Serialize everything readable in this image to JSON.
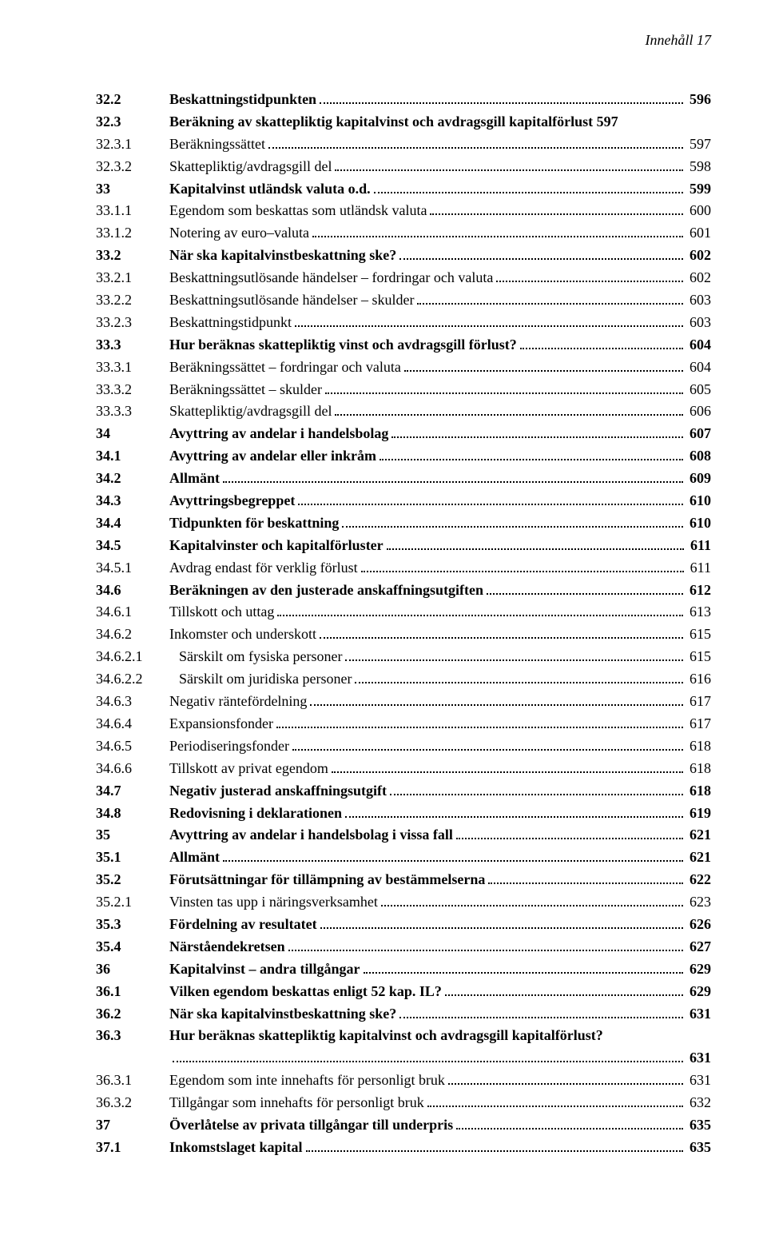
{
  "header": "Innehåll 17",
  "entries": [
    {
      "num": "32.2",
      "title": "Beskattningstidpunkten",
      "page": "596",
      "bold": true,
      "level": 1
    },
    {
      "num": "32.3",
      "title": "Beräkning av skattepliktig kapitalvinst och avdragsgill kapitalförlust 597",
      "page": "",
      "bold": true,
      "level": 1,
      "nopage": true
    },
    {
      "num": "32.3.1",
      "title": "Beräkningssättet",
      "page": "597",
      "bold": false,
      "level": 2
    },
    {
      "num": "32.3.2",
      "title": "Skattepliktig/avdragsgill del",
      "page": "598",
      "bold": false,
      "level": 2
    },
    {
      "num": "33",
      "title": "Kapitalvinst utländsk valuta o.d.",
      "page": "599",
      "bold": true,
      "level": 0
    },
    {
      "num": "33.1.1",
      "title": "Egendom som beskattas som utländsk valuta",
      "page": "600",
      "bold": false,
      "level": 2
    },
    {
      "num": "33.1.2",
      "title": "Notering av euro–valuta",
      "page": "601",
      "bold": false,
      "level": 2
    },
    {
      "num": "33.2",
      "title": "När ska kapitalvinstbeskattning ske?",
      "page": "602",
      "bold": true,
      "level": 1
    },
    {
      "num": "33.2.1",
      "title": "Beskattningsutlösande händelser – fordringar och  valuta",
      "page": "602",
      "bold": false,
      "level": 2
    },
    {
      "num": "33.2.2",
      "title": "Beskattningsutlösande händelser – skulder",
      "page": "603",
      "bold": false,
      "level": 2
    },
    {
      "num": "33.2.3",
      "title": "Beskattningstidpunkt",
      "page": "603",
      "bold": false,
      "level": 2
    },
    {
      "num": "33.3",
      "title": "Hur beräknas skattepliktig vinst och avdragsgill förlust?",
      "page": "604",
      "bold": true,
      "level": 1
    },
    {
      "num": "33.3.1",
      "title": "Beräkningssättet – fordringar och valuta",
      "page": "604",
      "bold": false,
      "level": 2
    },
    {
      "num": "33.3.2",
      "title": "Beräkningssättet – skulder",
      "page": "605",
      "bold": false,
      "level": 2
    },
    {
      "num": "33.3.3",
      "title": "Skattepliktig/avdragsgill del",
      "page": "606",
      "bold": false,
      "level": 2
    },
    {
      "num": "34",
      "title": "Avyttring av andelar  i handelsbolag",
      "page": "607",
      "bold": true,
      "level": 0
    },
    {
      "num": "34.1",
      "title": "Avyttring av andelar eller inkråm",
      "page": "608",
      "bold": true,
      "level": 1
    },
    {
      "num": "34.2",
      "title": "Allmänt",
      "page": "609",
      "bold": true,
      "level": 1
    },
    {
      "num": "34.3",
      "title": "Avyttringsbegreppet",
      "page": "610",
      "bold": true,
      "level": 1
    },
    {
      "num": "34.4",
      "title": "Tidpunkten för beskattning",
      "page": "610",
      "bold": true,
      "level": 1
    },
    {
      "num": "34.5",
      "title": "Kapitalvinster och kapitalförluster",
      "page": "611",
      "bold": true,
      "level": 1
    },
    {
      "num": "34.5.1",
      "title": "Avdrag endast för verklig förlust",
      "page": "611",
      "bold": false,
      "level": 2
    },
    {
      "num": "34.6",
      "title": "Beräkningen av den justerade anskaffningsutgiften",
      "page": "612",
      "bold": true,
      "level": 1
    },
    {
      "num": "34.6.1",
      "title": "Tillskott och uttag",
      "page": "613",
      "bold": false,
      "level": 2
    },
    {
      "num": "34.6.2",
      "title": "Inkomster och underskott",
      "page": "615",
      "bold": false,
      "level": 2
    },
    {
      "num": "34.6.2.1",
      "title": "Särskilt om fysiska personer",
      "page": "615",
      "bold": false,
      "level": 3
    },
    {
      "num": "34.6.2.2",
      "title": "Särskilt om juridiska personer",
      "page": "616",
      "bold": false,
      "level": 3
    },
    {
      "num": "34.6.3",
      "title": "Negativ räntefördelning",
      "page": "617",
      "bold": false,
      "level": 2
    },
    {
      "num": "34.6.4",
      "title": "Expansionsfonder",
      "page": "617",
      "bold": false,
      "level": 2
    },
    {
      "num": "34.6.5",
      "title": "Periodiseringsfonder",
      "page": "618",
      "bold": false,
      "level": 2
    },
    {
      "num": "34.6.6",
      "title": "Tillskott av privat egendom",
      "page": "618",
      "bold": false,
      "level": 2
    },
    {
      "num": "34.7",
      "title": "Negativ justerad anskaffningsutgift",
      "page": "618",
      "bold": true,
      "level": 1
    },
    {
      "num": "34.8",
      "title": "Redovisning i deklarationen",
      "page": "619",
      "bold": true,
      "level": 1
    },
    {
      "num": "35",
      "title": "Avyttring av andelar i handelsbolag i vissa fall",
      "page": "621",
      "bold": true,
      "level": 0
    },
    {
      "num": "35.1",
      "title": "Allmänt",
      "page": "621",
      "bold": true,
      "level": 1
    },
    {
      "num": "35.2",
      "title": "Förutsättningar för tillämpning av bestämmelserna",
      "page": "622",
      "bold": true,
      "level": 1
    },
    {
      "num": "35.2.1",
      "title": "Vinsten tas upp i näringsverksamhet",
      "page": "623",
      "bold": false,
      "level": 2
    },
    {
      "num": "35.3",
      "title": "Fördelning av resultatet",
      "page": "626",
      "bold": true,
      "level": 1
    },
    {
      "num": "35.4",
      "title": "Närståendekretsen",
      "page": "627",
      "bold": true,
      "level": 1
    },
    {
      "num": "36",
      "title": "Kapitalvinst – andra tillgångar",
      "page": "629",
      "bold": true,
      "level": 0
    },
    {
      "num": "36.1",
      "title": "Vilken egendom beskattas enligt 52 kap. IL?",
      "page": "629",
      "bold": true,
      "level": 1
    },
    {
      "num": "36.2",
      "title": "När ska kapitalvinstbeskattning ske?",
      "page": "631",
      "bold": true,
      "level": 1
    },
    {
      "num": "36.3",
      "title": "Hur beräknas skattepliktig kapitalvinst och avdragsgill kapitalförlust?",
      "page": "631",
      "bold": true,
      "level": 1,
      "continuation": true
    },
    {
      "num": "36.3.1",
      "title": "Egendom som inte innehafts för personligt bruk",
      "page": "631",
      "bold": false,
      "level": 2
    },
    {
      "num": "36.3.2",
      "title": "Tillgångar som innehafts för personligt bruk",
      "page": "632",
      "bold": false,
      "level": 2
    },
    {
      "num": "37",
      "title": "Överlåtelse av privata  tillgångar till underpris",
      "page": "635",
      "bold": true,
      "level": 0
    },
    {
      "num": "37.1",
      "title": "Inkomstslaget kapital",
      "page": "635",
      "bold": true,
      "level": 1
    }
  ]
}
